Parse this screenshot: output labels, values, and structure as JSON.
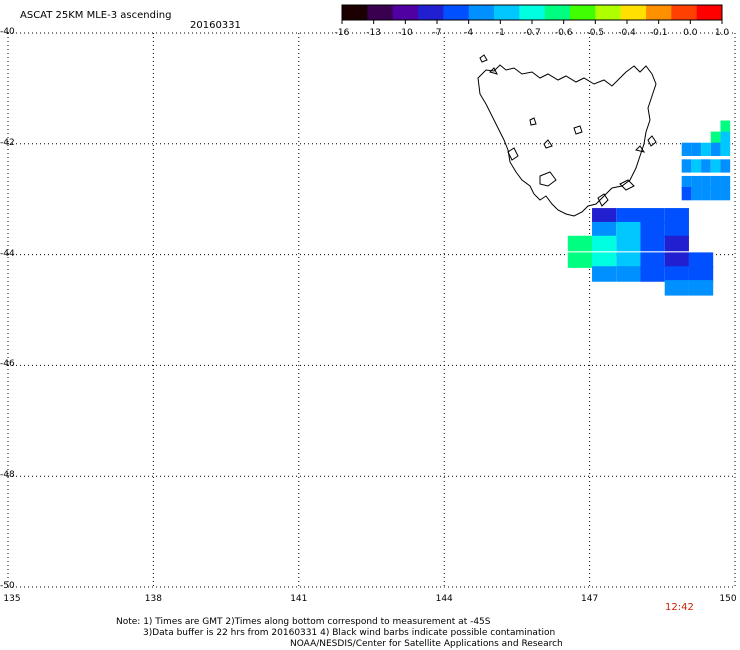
{
  "header": {
    "title": "ASCAT 25KM MLE-3 ascending",
    "date": "20160331"
  },
  "colorbar": {
    "ticks": [
      "-16",
      "-13",
      "-10",
      "-7",
      "-4",
      "-1",
      "-0.7",
      "-0.6",
      "-0.5",
      "-0.4",
      "-0.1",
      "0.0",
      "1.0"
    ],
    "colors": [
      "#1a0000",
      "#3a0050",
      "#5000a0",
      "#2020d0",
      "#0050ff",
      "#0090ff",
      "#00c8ff",
      "#00ffe0",
      "#00ff80",
      "#40ff00",
      "#b0ff00",
      "#ffe000",
      "#ff9000",
      "#ff4000",
      "#ff0000"
    ]
  },
  "map": {
    "lon_ticks": [
      "135",
      "138",
      "141",
      "144",
      "147",
      "150"
    ],
    "lat_ticks": [
      "-40",
      "-42",
      "-44",
      "-46",
      "-48",
      "-50"
    ],
    "lon_range": [
      135,
      150
    ],
    "lat_range": [
      -50,
      -40
    ],
    "time_label": "12:42",
    "time_label_color": "#cc2200",
    "cells": [
      {
        "lon": 149.8,
        "lat": -41.7,
        "color": "#00ff80"
      },
      {
        "lon": 149.6,
        "lat": -41.9,
        "color": "#00ff80"
      },
      {
        "lon": 149.8,
        "lat": -41.9,
        "color": "#00c8ff"
      },
      {
        "lon": 149.0,
        "lat": -42.1,
        "color": "#0090ff"
      },
      {
        "lon": 149.2,
        "lat": -42.1,
        "color": "#0090ff"
      },
      {
        "lon": 149.4,
        "lat": -42.1,
        "color": "#00c8ff"
      },
      {
        "lon": 149.6,
        "lat": -42.1,
        "color": "#0090ff"
      },
      {
        "lon": 149.8,
        "lat": -42.1,
        "color": "#00c8ff"
      },
      {
        "lon": 149.0,
        "lat": -42.4,
        "color": "#0090ff"
      },
      {
        "lon": 149.2,
        "lat": -42.4,
        "color": "#00c8ff"
      },
      {
        "lon": 149.4,
        "lat": -42.4,
        "color": "#0090ff"
      },
      {
        "lon": 149.6,
        "lat": -42.4,
        "color": "#00c8ff"
      },
      {
        "lon": 149.8,
        "lat": -42.4,
        "color": "#0090ff"
      },
      {
        "lon": 149.0,
        "lat": -42.7,
        "color": "#0090ff"
      },
      {
        "lon": 149.2,
        "lat": -42.7,
        "color": "#0090ff"
      },
      {
        "lon": 149.4,
        "lat": -42.7,
        "color": "#0090ff"
      },
      {
        "lon": 149.6,
        "lat": -42.7,
        "color": "#0090ff"
      },
      {
        "lon": 149.8,
        "lat": -42.7,
        "color": "#0090ff"
      },
      {
        "lon": 149.0,
        "lat": -42.9,
        "color": "#0050ff"
      },
      {
        "lon": 149.2,
        "lat": -42.9,
        "color": "#0090ff"
      },
      {
        "lon": 149.4,
        "lat": -42.9,
        "color": "#0090ff"
      },
      {
        "lon": 149.6,
        "lat": -42.9,
        "color": "#0090ff"
      },
      {
        "lon": 149.8,
        "lat": -42.9,
        "color": "#0090ff"
      },
      {
        "lon": 147.3,
        "lat": -43.3,
        "color": "#2020d0"
      },
      {
        "lon": 147.8,
        "lat": -43.3,
        "color": "#0050ff"
      },
      {
        "lon": 148.3,
        "lat": -43.3,
        "color": "#0050ff"
      },
      {
        "lon": 148.8,
        "lat": -43.3,
        "color": "#0050ff"
      },
      {
        "lon": 147.3,
        "lat": -43.55,
        "color": "#0090ff"
      },
      {
        "lon": 147.8,
        "lat": -43.55,
        "color": "#00c8ff"
      },
      {
        "lon": 148.3,
        "lat": -43.55,
        "color": "#0050ff"
      },
      {
        "lon": 148.8,
        "lat": -43.55,
        "color": "#0050ff"
      },
      {
        "lon": 146.8,
        "lat": -43.8,
        "color": "#00ff80"
      },
      {
        "lon": 147.3,
        "lat": -43.8,
        "color": "#00ffe0"
      },
      {
        "lon": 147.8,
        "lat": -43.8,
        "color": "#00c8ff"
      },
      {
        "lon": 148.3,
        "lat": -43.8,
        "color": "#0050ff"
      },
      {
        "lon": 148.8,
        "lat": -43.8,
        "color": "#2020d0"
      },
      {
        "lon": 146.8,
        "lat": -44.1,
        "color": "#00ff80"
      },
      {
        "lon": 147.3,
        "lat": -44.1,
        "color": "#00ffe0"
      },
      {
        "lon": 147.8,
        "lat": -44.1,
        "color": "#00c8ff"
      },
      {
        "lon": 148.3,
        "lat": -44.1,
        "color": "#0050ff"
      },
      {
        "lon": 148.8,
        "lat": -44.1,
        "color": "#2020d0"
      },
      {
        "lon": 149.3,
        "lat": -44.1,
        "color": "#0050ff"
      },
      {
        "lon": 147.3,
        "lat": -44.35,
        "color": "#0090ff"
      },
      {
        "lon": 147.8,
        "lat": -44.35,
        "color": "#0090ff"
      },
      {
        "lon": 148.3,
        "lat": -44.35,
        "color": "#0050ff"
      },
      {
        "lon": 148.8,
        "lat": -44.35,
        "color": "#0050ff"
      },
      {
        "lon": 149.3,
        "lat": -44.35,
        "color": "#0050ff"
      },
      {
        "lon": 148.8,
        "lat": -44.6,
        "color": "#0090ff"
      },
      {
        "lon": 149.3,
        "lat": -44.6,
        "color": "#0090ff"
      }
    ]
  },
  "notes": {
    "line1": "Note: 1) Times are GMT 2)Times along bottom correspond to measurement at -45S",
    "line2": "3)Data buffer is 22 hrs from 20160331 4) Black wind barbs indicate possible contamination",
    "line3": "NOAA/NESDIS/Center for Satellite Applications and Research"
  }
}
